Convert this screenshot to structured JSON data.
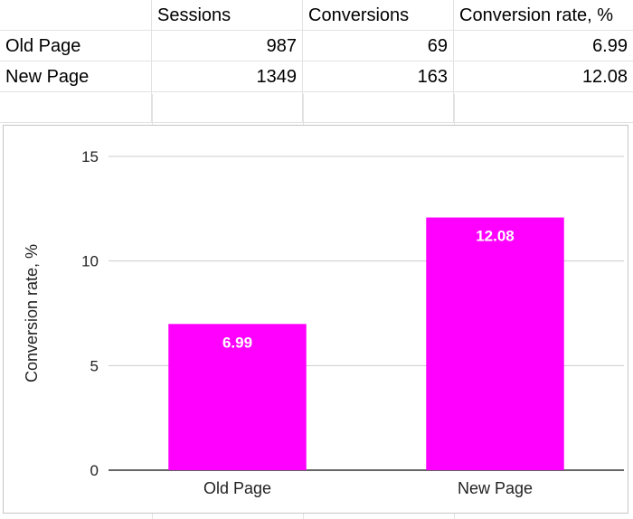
{
  "table": {
    "headers": [
      "",
      "Sessions",
      "Conversions",
      "Conversion rate, %"
    ],
    "rows": [
      [
        "Old Page",
        "987",
        "69",
        "6.99"
      ],
      [
        "New Page",
        "1349",
        "163",
        "12.08"
      ]
    ]
  },
  "chart_data": {
    "type": "bar",
    "categories": [
      "Old Page",
      "New Page"
    ],
    "values": [
      6.99,
      12.08
    ],
    "data_labels": [
      "6.99",
      "12.08"
    ],
    "title": "",
    "xlabel": "",
    "ylabel": "Conversion rate, %",
    "ylim": [
      0,
      15
    ],
    "yticks": [
      "0",
      "5",
      "10",
      "15"
    ],
    "grid": true,
    "bar_color": "#ff00ff",
    "label_color": "#ffffff",
    "gridline_color": "#cccccc"
  }
}
